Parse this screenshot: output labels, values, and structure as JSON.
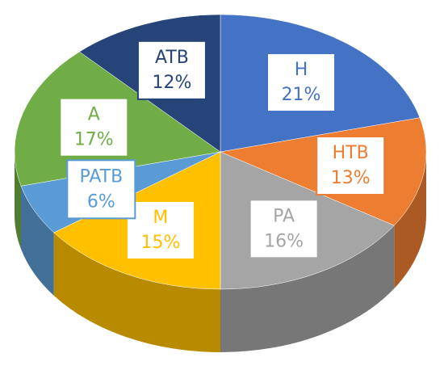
{
  "chart_data": {
    "type": "pie",
    "categories": [
      "H",
      "HTB",
      "PA",
      "M",
      "PATB",
      "A",
      "ATB"
    ],
    "values": [
      21,
      13,
      16,
      15,
      6,
      17,
      12
    ],
    "value_labels": [
      "21%",
      "13%",
      "16%",
      "15%",
      "6%",
      "17%",
      "12%"
    ],
    "colors": [
      "#4472c4",
      "#ed7d31",
      "#a5a5a5",
      "#ffc000",
      "#5b9bd5",
      "#70ad47",
      "#264478"
    ]
  }
}
